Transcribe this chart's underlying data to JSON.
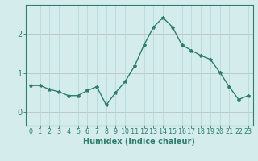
{
  "x": [
    0,
    1,
    2,
    3,
    4,
    5,
    6,
    7,
    8,
    9,
    10,
    11,
    12,
    13,
    14,
    15,
    16,
    17,
    18,
    19,
    20,
    21,
    22,
    23
  ],
  "y": [
    0.68,
    0.68,
    0.58,
    0.52,
    0.42,
    0.42,
    0.55,
    0.65,
    0.18,
    0.5,
    0.78,
    1.18,
    1.72,
    2.18,
    2.42,
    2.18,
    1.72,
    1.58,
    1.45,
    1.35,
    1.02,
    0.65,
    0.32,
    0.42
  ],
  "line_color": "#2e7d6e",
  "marker": "*",
  "marker_size": 3,
  "bg_color": "#d4ecec",
  "grid_color": "#b8d8d8",
  "xlabel": "Humidex (Indice chaleur)",
  "ylim": [
    -0.35,
    2.75
  ],
  "xlim": [
    -0.5,
    23.5
  ],
  "yticks": [
    0,
    1,
    2
  ],
  "xtick_labels": [
    "0",
    "1",
    "2",
    "3",
    "4",
    "5",
    "6",
    "7",
    "8",
    "9",
    "10",
    "11",
    "12",
    "13",
    "14",
    "15",
    "16",
    "17",
    "18",
    "19",
    "20",
    "21",
    "22",
    "23"
  ],
  "label_fontsize": 7,
  "tick_fontsize": 6
}
